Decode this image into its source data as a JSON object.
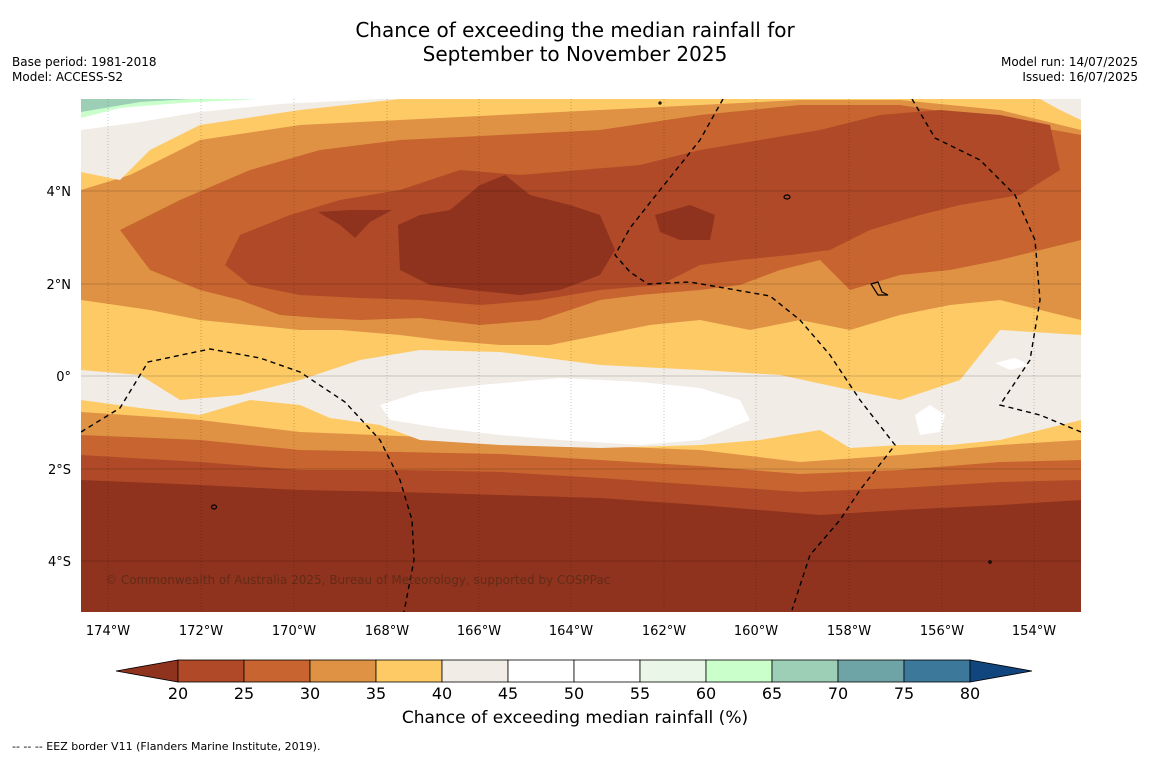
{
  "title": {
    "line1": "Chance of exceeding the median rainfall for",
    "line2": "September to November 2025"
  },
  "meta_left": {
    "base_period": "Base period: 1981-2018",
    "model": "Model: ACCESS-S2"
  },
  "meta_right": {
    "model_run": "Model run: 14/07/2025",
    "issued": "Issued: 16/07/2025"
  },
  "map": {
    "lat_labels": [
      "4°N",
      "2°N",
      "0°",
      "2°S",
      "4°S"
    ],
    "lon_labels": [
      "174°W",
      "172°W",
      "170°W",
      "168°W",
      "166°W",
      "164°W",
      "162°W",
      "160°W",
      "158°W",
      "156°W",
      "154°W"
    ],
    "copyright": "© Commonwealth of Australia 2025, Bureau of Meteorology, supported by COSPPac",
    "eez_line_color": "#000000"
  },
  "colorbar": {
    "ticks": [
      "20",
      "25",
      "30",
      "35",
      "40",
      "45",
      "50",
      "55",
      "60",
      "65",
      "70",
      "75",
      "80"
    ],
    "colors": [
      "#8f331e",
      "#b04927",
      "#c8642f",
      "#df9244",
      "#fdca66",
      "#f1ece6",
      "#ffffff",
      "#ffffff",
      "#eaf6e7",
      "#caffcc",
      "#9dcfb7",
      "#6fa4a6",
      "#3c7899",
      "#11457e"
    ],
    "title": "Chance of exceeding median rainfall (%)"
  },
  "footnote": "--  --  -- EEZ border V11 (Flanders Marine Institute, 2019)."
}
